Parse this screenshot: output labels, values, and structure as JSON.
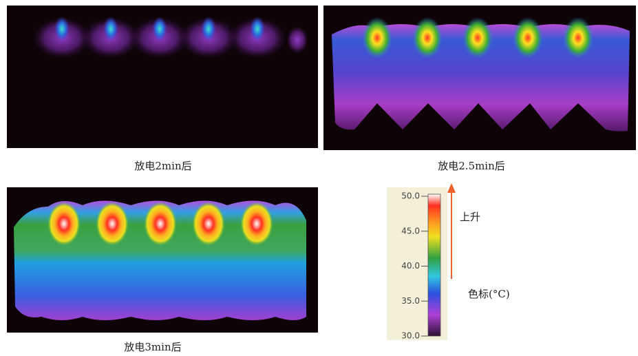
{
  "panels": [
    {
      "caption": "放电2min后"
    },
    {
      "caption": "放电2.5min后"
    },
    {
      "caption": "放电3min后"
    }
  ],
  "colorbar": {
    "ticks": [
      {
        "value": 50,
        "label": "50.0"
      },
      {
        "value": 45,
        "label": "45.0"
      },
      {
        "value": 40,
        "label": "40.0"
      },
      {
        "value": 35,
        "label": "35.0"
      },
      {
        "value": 30,
        "label": "30.0"
      }
    ],
    "arrow_label": "上升",
    "unit_label": "色标(°C)"
  }
}
